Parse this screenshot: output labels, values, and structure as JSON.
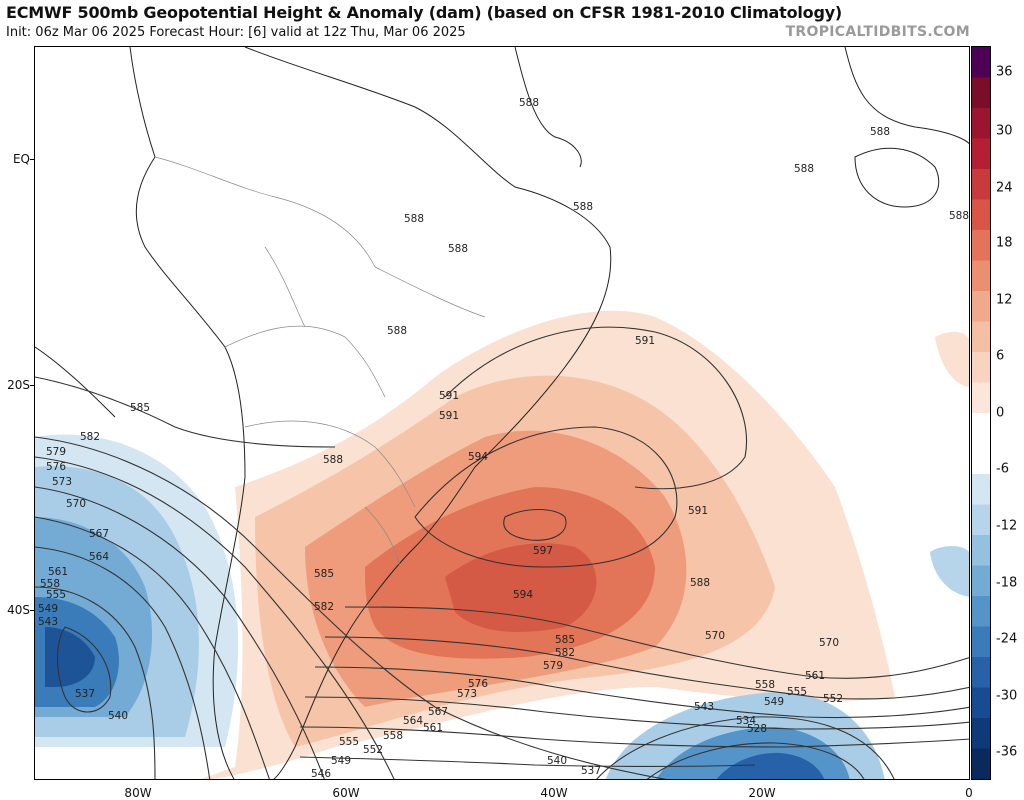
{
  "header": {
    "title": "ECMWF 500mb Geopotential Height & Anomaly (dam) (based on CFSR 1981-2010 Climatology)",
    "subtitle": "Init: 06z Mar 06 2025   Forecast Hour: [6]   valid at 12z Thu, Mar 06 2025",
    "site": "TROPICALTIDBITS.COM"
  },
  "axes": {
    "lat_labels": [
      "EQ",
      "20S",
      "40S"
    ],
    "lon_labels": [
      "80W",
      "60W",
      "40W",
      "20W",
      "0"
    ]
  },
  "colorbar": {
    "labels": [
      "36",
      "30",
      "24",
      "18",
      "12",
      "6",
      "0",
      "-6",
      "-12",
      "-18",
      "-24",
      "-30",
      "-36"
    ],
    "colors": [
      "#4d0054",
      "#7a0d2a",
      "#9b1530",
      "#b51e33",
      "#c93a3c",
      "#d95545",
      "#e37359",
      "#ea8f70",
      "#f0a98a",
      "#f4c0a4",
      "#f8d4c0",
      "#fbe6d9",
      "#ffffff",
      "#ffffff",
      "#d4e6f1",
      "#b6d4ea",
      "#95c1e1",
      "#74abd5",
      "#5594c8",
      "#3a7bb9",
      "#2762a8",
      "#184c92",
      "#0f3a7a",
      "#0a2a5e"
    ]
  },
  "contours": {
    "labels": [
      "588",
      "588",
      "588",
      "588",
      "588",
      "588",
      "588",
      "588",
      "591",
      "591",
      "591",
      "594",
      "594",
      "597",
      "585",
      "582",
      "579",
      "576",
      "573",
      "570",
      "567",
      "564",
      "561",
      "558",
      "555",
      "549",
      "543",
      "540",
      "537",
      "585",
      "582",
      "588",
      "585",
      "582",
      "579",
      "576",
      "573",
      "570",
      "567",
      "564",
      "561",
      "558",
      "555",
      "552",
      "549",
      "546",
      "540",
      "537",
      "543",
      "534",
      "528",
      "552",
      "549",
      "555",
      "558",
      "561",
      "570",
      "591",
      "588"
    ]
  }
}
